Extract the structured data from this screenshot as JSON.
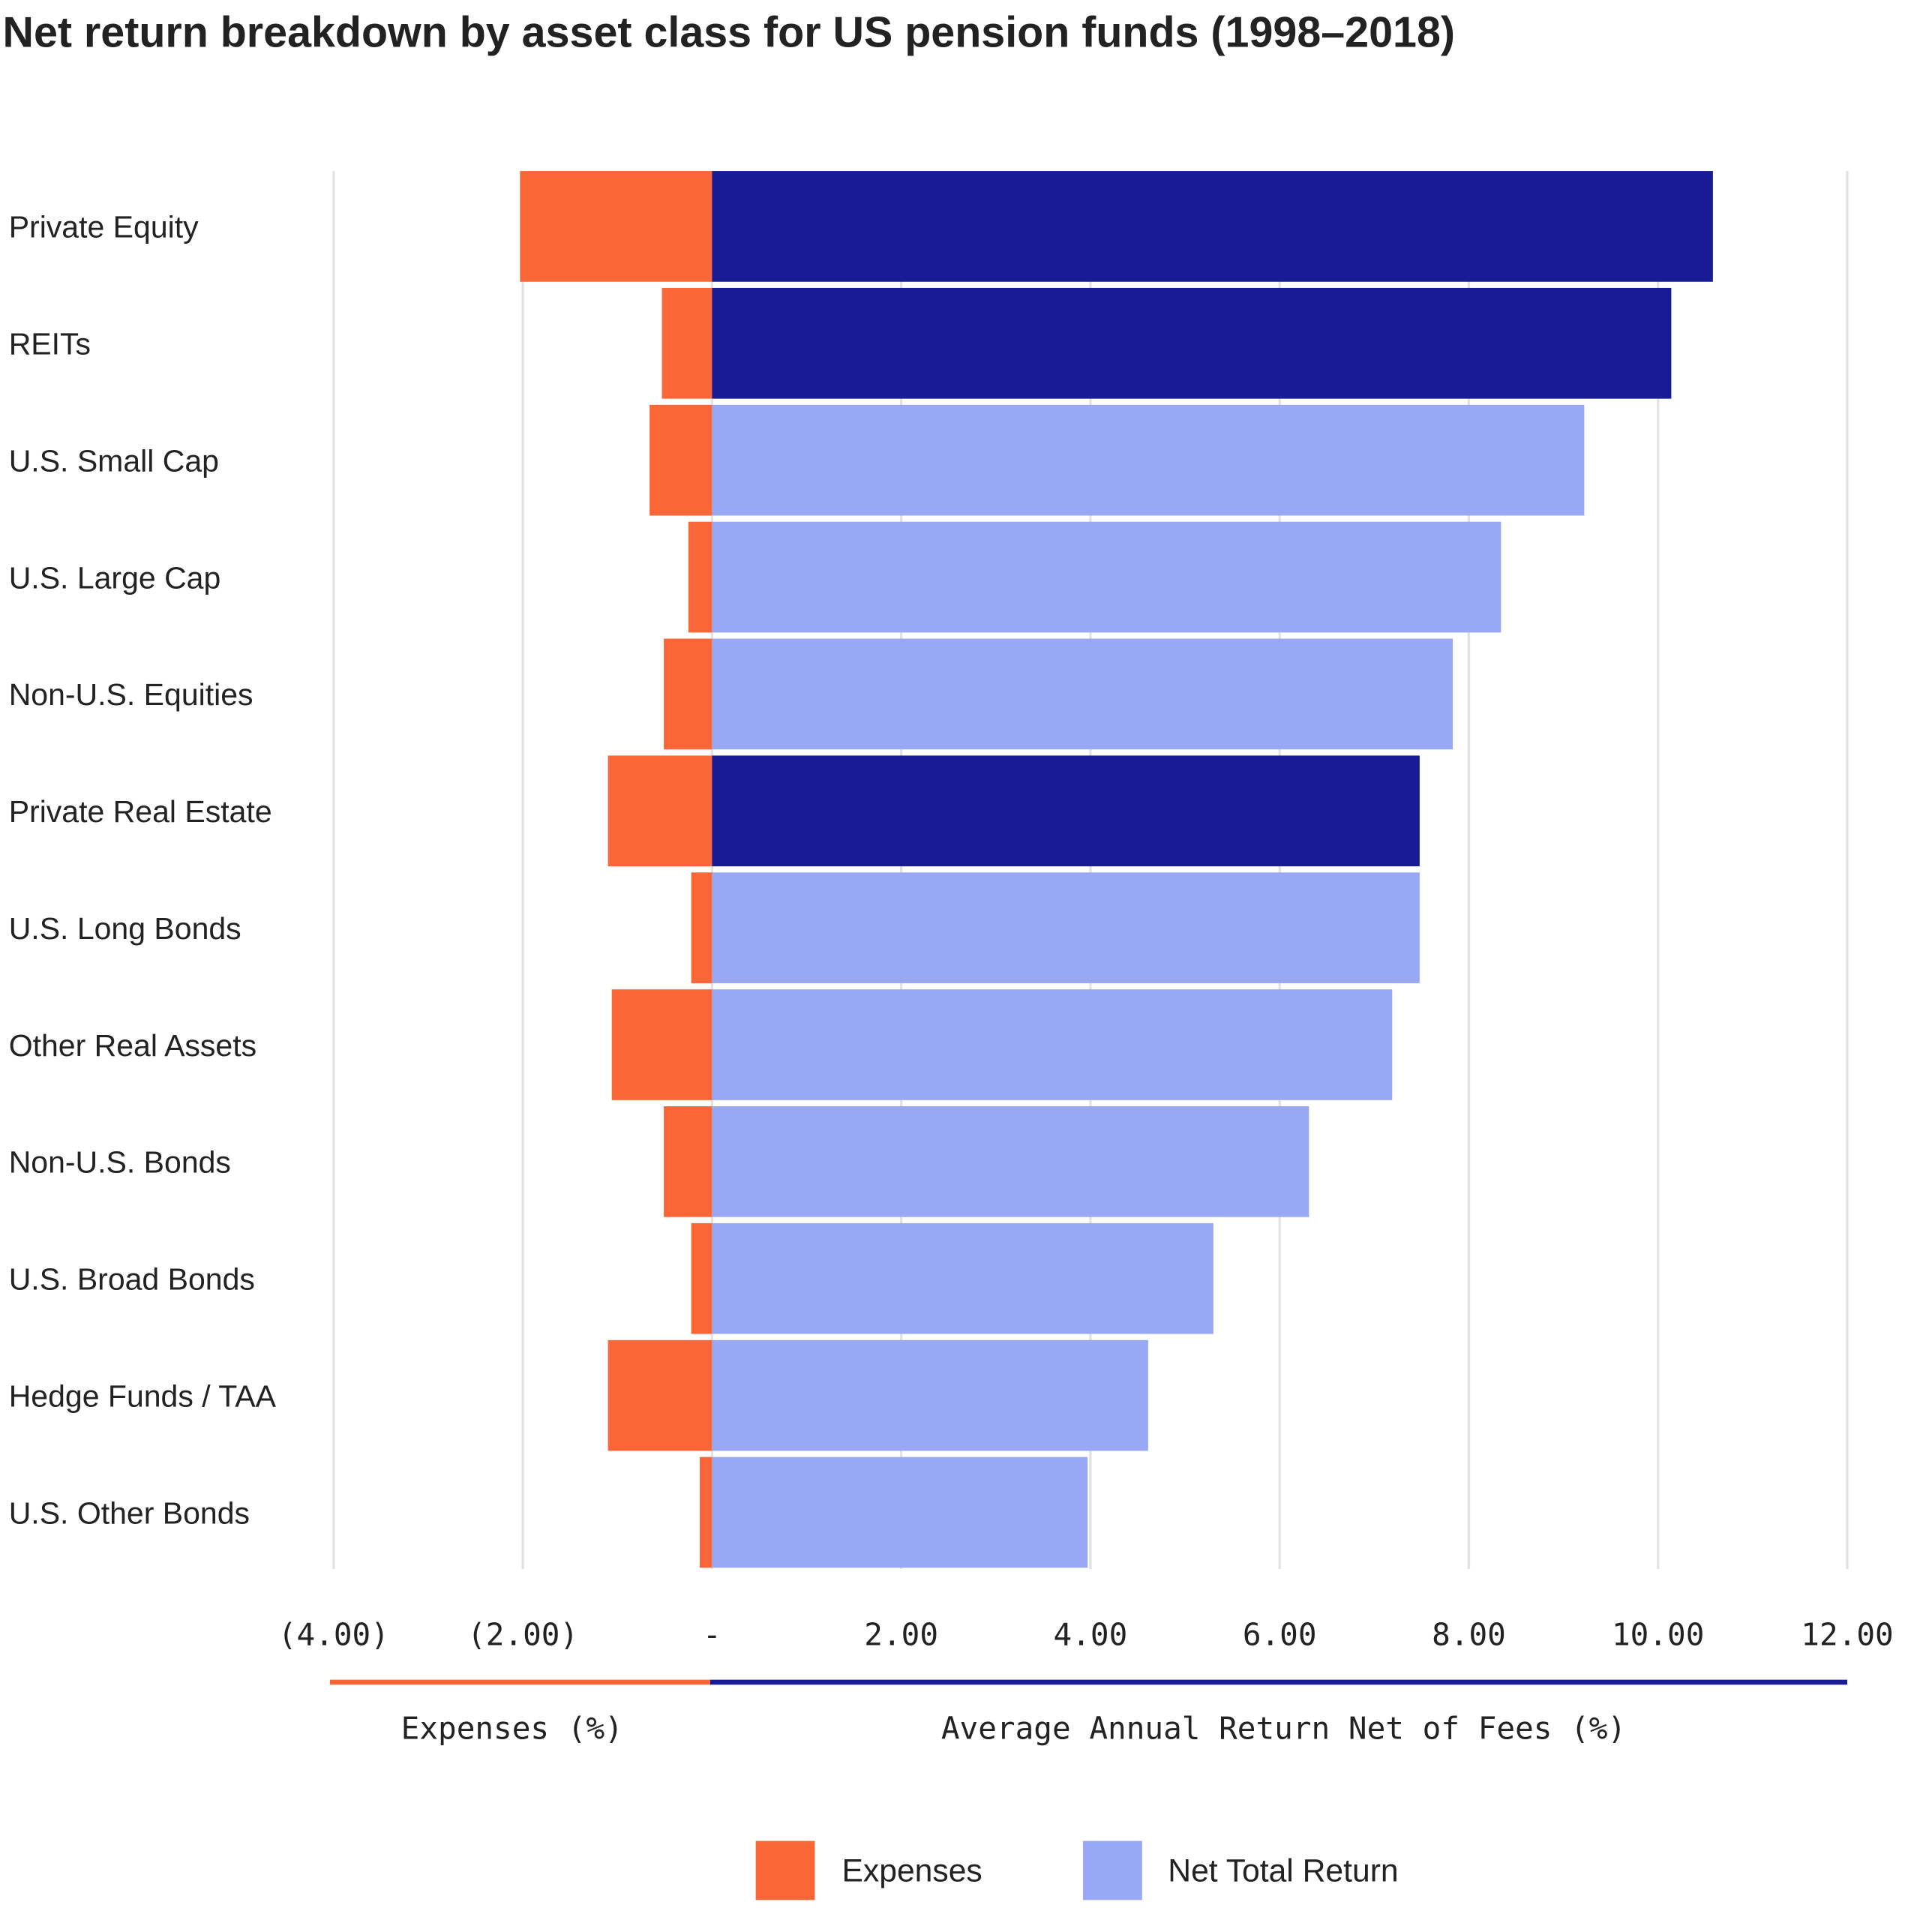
{
  "chart_data": {
    "type": "bar",
    "orientation": "horizontal",
    "title": "Net return breakdown by asset class for US pension funds (1998–2018)",
    "categories": [
      "Private Equity",
      "REITs",
      "U.S. Small Cap",
      "U.S. Large Cap",
      "Non-U.S. Equities",
      "Private Real Estate",
      "U.S. Long Bonds",
      "Other Real Assets",
      "Non-U.S. Bonds",
      "U.S. Broad Bonds",
      "Hedge Funds / TAA",
      "U.S. Other Bonds"
    ],
    "series": [
      {
        "name": "Expenses",
        "color": "#FA6638",
        "values": [
          -2.03,
          -0.53,
          -0.66,
          -0.25,
          -0.51,
          -1.1,
          -0.22,
          -1.06,
          -0.51,
          -0.22,
          -1.1,
          -0.13
        ]
      },
      {
        "name": "Net Total Return",
        "color": "#99A8F5",
        "highlight_color": "#171C94",
        "highlighted": [
          true,
          true,
          false,
          false,
          false,
          true,
          false,
          false,
          false,
          false,
          false,
          false
        ],
        "values": [
          10.58,
          10.14,
          9.22,
          8.34,
          7.83,
          7.48,
          7.48,
          7.19,
          6.31,
          5.3,
          4.61,
          3.97
        ]
      }
    ],
    "xlim": [
      -4,
      12
    ],
    "xticks": [
      -4,
      -2,
      0,
      2,
      4,
      6,
      8,
      10,
      12
    ],
    "xtick_labels": [
      "(4.00)",
      "(2.00)",
      "-",
      "2.00",
      "4.00",
      "6.00",
      "8.00",
      "10.00",
      "12.00"
    ],
    "xlabel_left": "Expenses (%)",
    "xlabel_right": "Average Annual Return Net of Fees (%)",
    "grid": true,
    "legend_position": "bottom-center",
    "legend": [
      "Expenses",
      "Net Total Return"
    ]
  }
}
